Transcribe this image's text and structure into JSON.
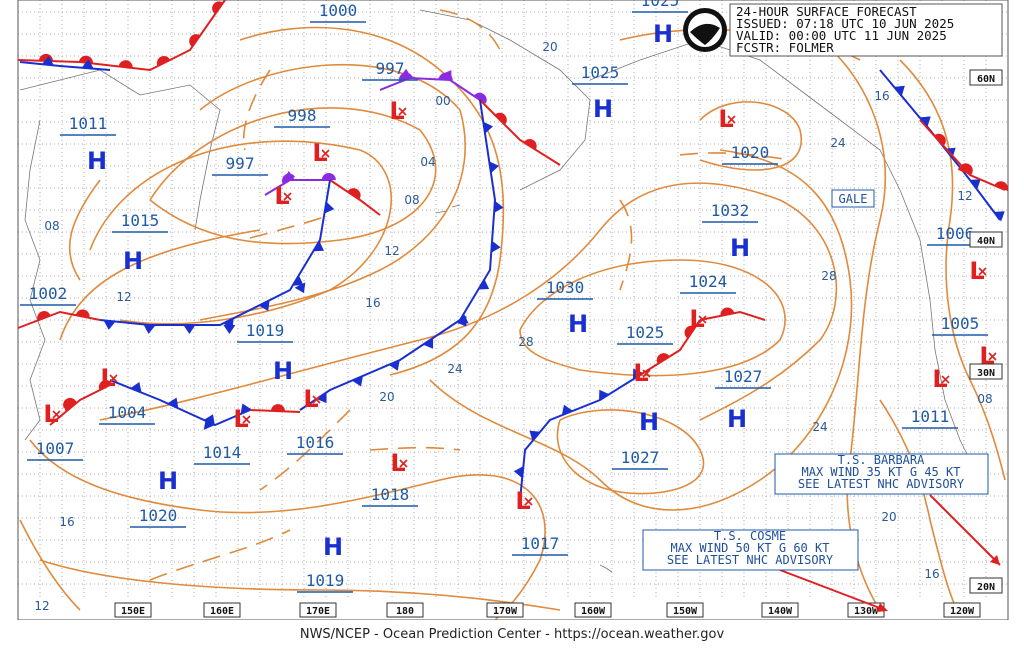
{
  "header": {
    "lines": [
      "24-HOUR SURFACE FORECAST",
      "ISSUED: 07:18 UTC 10 JUN 2025",
      "VALID:  00:00 UTC 11 JUN 2025",
      "FCSTR:  FOLMER"
    ]
  },
  "symbols": {
    "high": "H",
    "low": "L"
  },
  "pressure_labels": [
    "1000",
    "997",
    "998",
    "997",
    "1011",
    "1015",
    "1002",
    "1019",
    "1004",
    "1007",
    "1014",
    "1016",
    "1020",
    "1018",
    "1019",
    "1017",
    "1027",
    "1025",
    "1030",
    "1024",
    "1032",
    "1020",
    "1025",
    "1027",
    "1011",
    "1005",
    "1006",
    "1025"
  ],
  "isobar_labels": [
    "20",
    "00",
    "04",
    "08",
    "12",
    "16",
    "20",
    "24",
    "28",
    "28",
    "24",
    "16",
    "12",
    "08",
    "24",
    "20",
    "16",
    "16",
    "12",
    "08",
    "12"
  ],
  "longitude_labels": [
    "150E",
    "160E",
    "170E",
    "180",
    "170W",
    "160W",
    "150W",
    "140W",
    "130W",
    "120W"
  ],
  "latitude_labels": [
    "60N",
    "40N",
    "30N",
    "20N"
  ],
  "gale_box": "GALE",
  "advisories": [
    {
      "lines": [
        "T.S. BARBARA",
        "MAX WIND 35 KT G 45 KT",
        "SEE LATEST NHC ADVISORY"
      ]
    },
    {
      "lines": [
        "T.S. COSME",
        "MAX WIND 50 KT G 60 KT",
        "SEE LATEST NHC ADVISORY"
      ]
    }
  ],
  "footer": "NWS/NCEP - Ocean Prediction Center - https://ocean.weather.gov"
}
